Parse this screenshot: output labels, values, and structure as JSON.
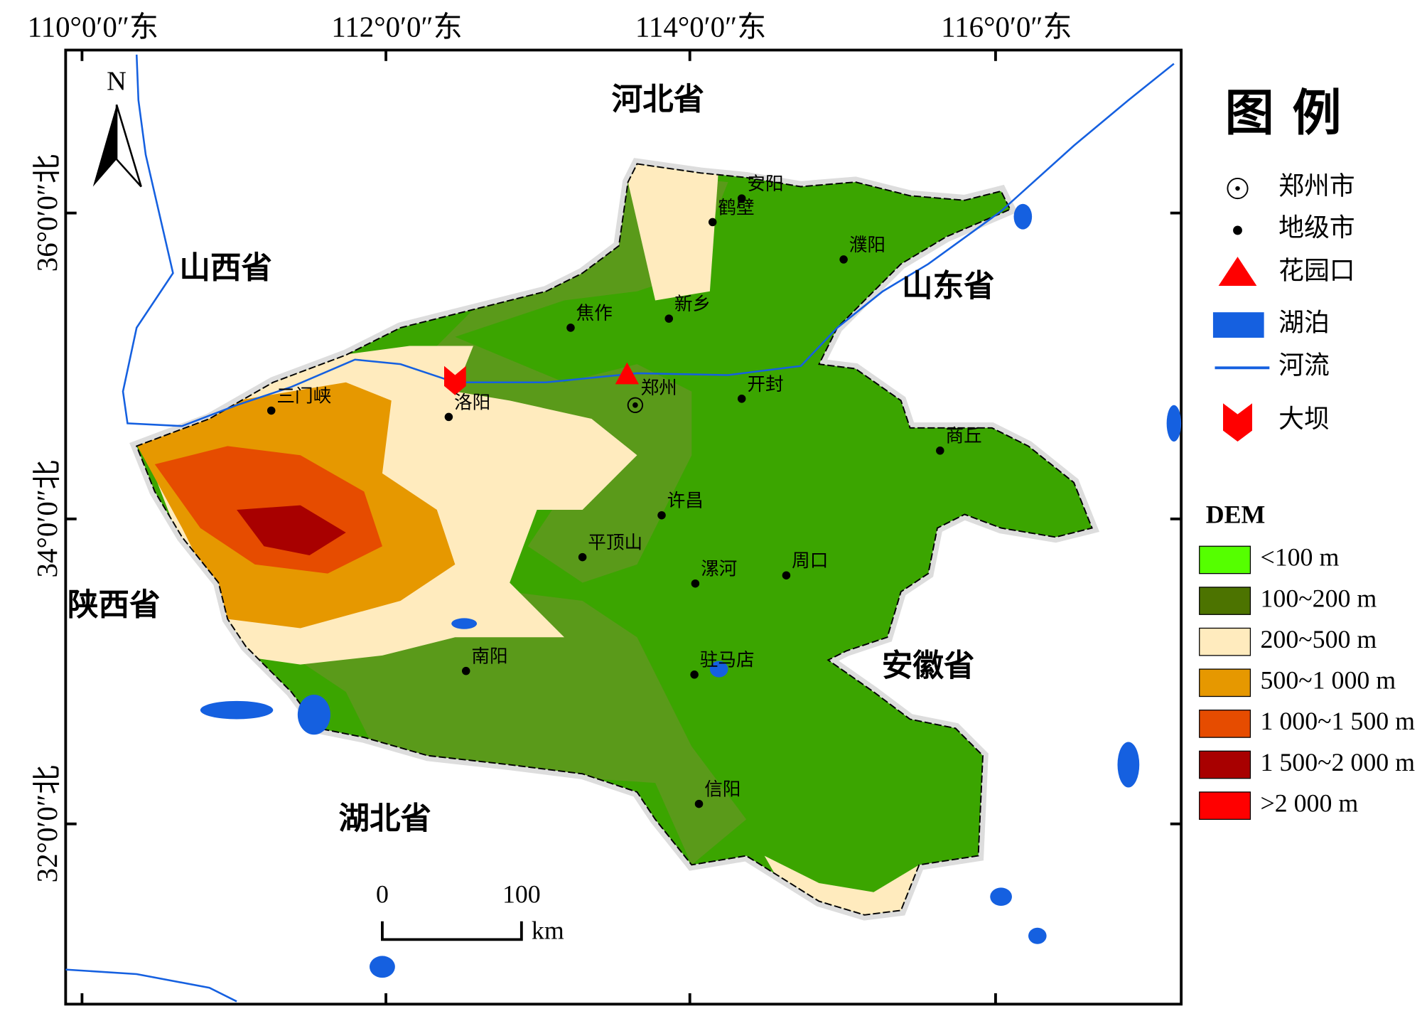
{
  "longitude_labels": [
    "110°0′0″东",
    "112°0′0″东",
    "114°0′0″东",
    "116°0′0″东"
  ],
  "latitude_labels": [
    "36°0′0″北",
    "34°0′0″北",
    "32°0′0″北"
  ],
  "north_arrow": "N",
  "provinces": [
    "河北省",
    "山西省",
    "山东省",
    "陕西省",
    "安徽省",
    "湖北省"
  ],
  "capital": "郑州",
  "cities": [
    "安阳",
    "鹤壁",
    "濮阳",
    "新乡",
    "焦作",
    "开封",
    "三门峡",
    "洛阳",
    "商丘",
    "许昌",
    "平顶山",
    "漯河",
    "周口",
    "南阳",
    "驻马店",
    "信阳"
  ],
  "legend": {
    "title": "图例",
    "items": [
      "郑州市",
      "地级市",
      "花园口",
      "湖泊",
      "河流",
      "大坝"
    ]
  },
  "dem_legend": {
    "title": "DEM",
    "classes": [
      {
        "label": "<100 m",
        "color": "#55ff00"
      },
      {
        "label": "100~200 m",
        "color": "#4c7300"
      },
      {
        "label": "200~500 m",
        "color": "#ffebbe"
      },
      {
        "label": "500~1 000 m",
        "color": "#e69800"
      },
      {
        "label": "1 000~1 500 m",
        "color": "#e64c00"
      },
      {
        "label": "1 500~2 000 m",
        "color": "#a80000"
      },
      {
        "label": ">2 000 m",
        "color": "#ff0000"
      }
    ]
  },
  "scale_bar": {
    "ticks": [
      0,
      100
    ],
    "unit": "km"
  }
}
